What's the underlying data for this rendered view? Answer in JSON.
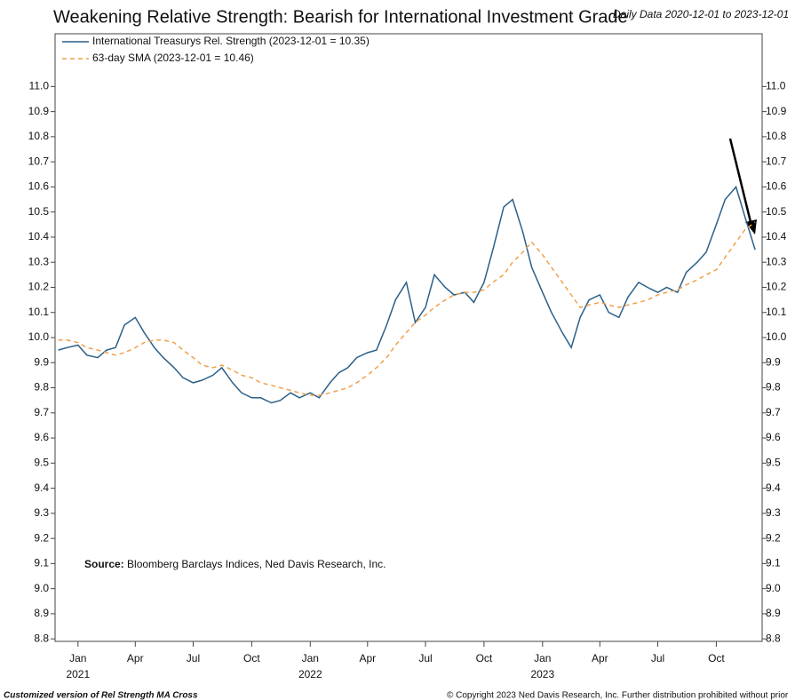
{
  "chart_data": {
    "type": "line",
    "title": "Weakening Relative Strength: Bearish for International Investment Grade",
    "subtitle": "Daily Data 2020-12-01 to 2023-12-01",
    "source_label": "Source:",
    "source": "Bloomberg Barclays Indices, Ned Davis Research, Inc.",
    "footer_left": "Customized version of Rel Strength MA Cross",
    "footer_right": "© Copyright 2023 Ned Davis Research, Inc. Further distribution prohibited without prior",
    "x": [
      "2020-12-01",
      "2020-12-15",
      "2021-01-01",
      "2021-01-15",
      "2021-02-01",
      "2021-02-15",
      "2021-03-01",
      "2021-03-15",
      "2021-04-01",
      "2021-04-15",
      "2021-05-01",
      "2021-05-15",
      "2021-06-01",
      "2021-06-15",
      "2021-07-01",
      "2021-07-15",
      "2021-08-01",
      "2021-08-15",
      "2021-09-01",
      "2021-09-15",
      "2021-10-01",
      "2021-10-15",
      "2021-11-01",
      "2021-11-15",
      "2021-12-01",
      "2021-12-15",
      "2022-01-01",
      "2022-01-15",
      "2022-02-01",
      "2022-02-15",
      "2022-03-01",
      "2022-03-15",
      "2022-04-01",
      "2022-04-15",
      "2022-05-01",
      "2022-05-15",
      "2022-06-01",
      "2022-06-15",
      "2022-07-01",
      "2022-07-15",
      "2022-08-01",
      "2022-08-15",
      "2022-09-01",
      "2022-09-15",
      "2022-10-01",
      "2022-10-15",
      "2022-11-01",
      "2022-11-15",
      "2022-12-01",
      "2022-12-15",
      "2023-01-01",
      "2023-01-15",
      "2023-02-01",
      "2023-02-15",
      "2023-03-01",
      "2023-03-15",
      "2023-04-01",
      "2023-04-15",
      "2023-05-01",
      "2023-05-15",
      "2023-06-01",
      "2023-06-15",
      "2023-07-01",
      "2023-07-15",
      "2023-08-01",
      "2023-08-15",
      "2023-09-01",
      "2023-09-15",
      "2023-10-01",
      "2023-10-15",
      "2023-11-01",
      "2023-11-15",
      "2023-12-01"
    ],
    "series": [
      {
        "name": "International Treasurys Rel. Strength (2023-12-01 = 10.35)",
        "color": "#2b6088",
        "dash": false,
        "values": [
          9.95,
          9.96,
          9.97,
          9.93,
          9.92,
          9.95,
          9.96,
          10.05,
          10.08,
          10.02,
          9.96,
          9.92,
          9.88,
          9.84,
          9.82,
          9.83,
          9.85,
          9.88,
          9.82,
          9.78,
          9.76,
          9.76,
          9.74,
          9.75,
          9.78,
          9.76,
          9.78,
          9.76,
          9.82,
          9.86,
          9.88,
          9.92,
          9.94,
          9.95,
          10.05,
          10.15,
          10.22,
          10.06,
          10.12,
          10.25,
          10.2,
          10.17,
          10.18,
          10.14,
          10.22,
          10.35,
          10.52,
          10.55,
          10.42,
          10.28,
          10.18,
          10.1,
          10.02,
          9.96,
          10.08,
          10.15,
          10.17,
          10.1,
          10.08,
          10.16,
          10.22,
          10.2,
          10.18,
          10.2,
          10.18,
          10.26,
          10.3,
          10.34,
          10.45,
          10.55,
          10.6,
          10.48,
          10.35
        ]
      },
      {
        "name": "63-day SMA (2023-12-01 = 10.46)",
        "color": "#f0a04b",
        "dash": true,
        "values": [
          9.99,
          9.99,
          9.98,
          9.96,
          9.95,
          9.94,
          9.93,
          9.94,
          9.96,
          9.98,
          9.99,
          9.99,
          9.98,
          9.95,
          9.92,
          9.89,
          9.88,
          9.89,
          9.87,
          9.85,
          9.84,
          9.82,
          9.81,
          9.8,
          9.79,
          9.78,
          9.77,
          9.77,
          9.78,
          9.79,
          9.8,
          9.82,
          9.85,
          9.88,
          9.92,
          9.97,
          10.02,
          10.06,
          10.09,
          10.12,
          10.15,
          10.17,
          10.18,
          10.18,
          10.19,
          10.22,
          10.25,
          10.3,
          10.34,
          10.38,
          10.33,
          10.28,
          10.22,
          10.17,
          10.12,
          10.13,
          10.14,
          10.13,
          10.12,
          10.13,
          10.14,
          10.15,
          10.17,
          10.18,
          10.19,
          10.21,
          10.23,
          10.25,
          10.27,
          10.32,
          10.38,
          10.43,
          10.46
        ]
      }
    ],
    "xlim": [
      "2020-11-26",
      "2023-12-12"
    ],
    "xticks": [
      {
        "value": "2021-01-01",
        "label": "Jan"
      },
      {
        "value": "2021-04-01",
        "label": "Apr"
      },
      {
        "value": "2021-07-01",
        "label": "Jul"
      },
      {
        "value": "2021-10-01",
        "label": "Oct"
      },
      {
        "value": "2022-01-01",
        "label": "Jan"
      },
      {
        "value": "2022-04-01",
        "label": "Apr"
      },
      {
        "value": "2022-07-01",
        "label": "Jul"
      },
      {
        "value": "2022-10-01",
        "label": "Oct"
      },
      {
        "value": "2023-01-01",
        "label": "Jan"
      },
      {
        "value": "2023-04-01",
        "label": "Apr"
      },
      {
        "value": "2023-07-01",
        "label": "Jul"
      },
      {
        "value": "2023-10-01",
        "label": "Oct"
      }
    ],
    "year_labels": [
      {
        "value": "2021-01-01",
        "label": "2021"
      },
      {
        "value": "2022-01-01",
        "label": "2022"
      },
      {
        "value": "2023-01-01",
        "label": "2023"
      }
    ],
    "ylim": [
      8.79,
      11.21
    ],
    "yticks": [
      {
        "value": 8.8,
        "label": "8.8"
      },
      {
        "value": 8.9,
        "label": "8.9"
      },
      {
        "value": 9.0,
        "label": "9.0"
      },
      9.1,
      9.2,
      9.3,
      9.4,
      9.5,
      9.6,
      9.7,
      9.8,
      9.9,
      {
        "value": 10.0,
        "label": "10.0"
      },
      10.1,
      10.2,
      10.3,
      10.4,
      10.5,
      10.6,
      10.7,
      10.8,
      10.9,
      {
        "value": 11.0,
        "label": "11.0"
      }
    ],
    "right_axis": true
  }
}
